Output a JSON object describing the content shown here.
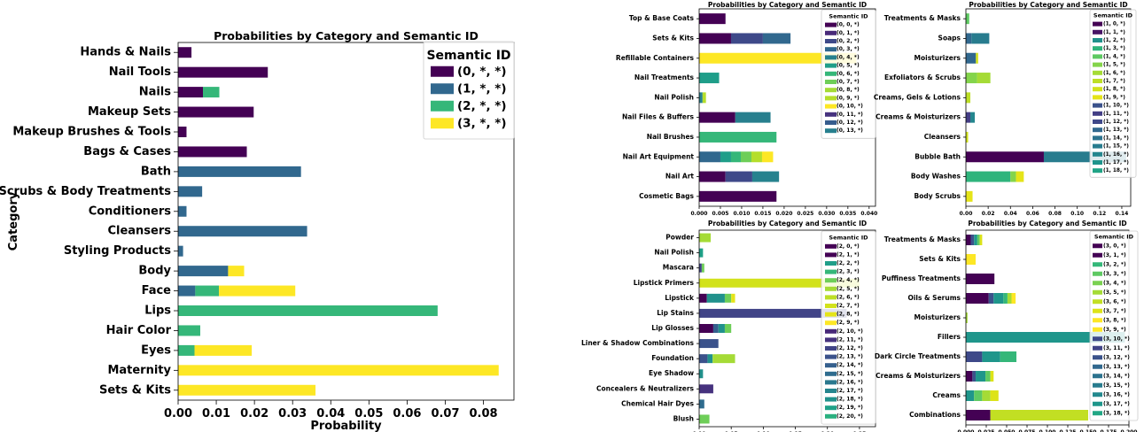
{
  "chart_data": [
    {
      "type": "bar",
      "orientation": "horizontal",
      "stacked": true,
      "title": "Probabilities by Category and Semantic ID",
      "xlabel": "Probability",
      "ylabel": "Category",
      "xlim": [
        0,
        0.088
      ],
      "xticks": [
        "0.00",
        "0.01",
        "0.02",
        "0.03",
        "0.04",
        "0.05",
        "0.06",
        "0.07",
        "0.08"
      ],
      "xtick_values": [
        0,
        0.01,
        0.02,
        0.03,
        0.04,
        0.05,
        0.06,
        0.07,
        0.08
      ],
      "legend_title": "Semantic ID",
      "legend_position": "top-right",
      "categories": [
        "Hands & Nails",
        "Nail Tools",
        "Nails",
        "Makeup Sets",
        "Makeup Brushes & Tools",
        "Bags & Cases",
        "Bath",
        "Scrubs & Body Treatments",
        "Conditioners",
        "Cleansers",
        "Styling Products",
        "Body",
        "Face",
        "Lips",
        "Hair Color",
        "Eyes",
        "Maternity",
        "Sets & Kits"
      ],
      "series": [
        {
          "name": "(0, *, *)",
          "color": "#440154",
          "values": [
            0.0035,
            0.0235,
            0.0065,
            0.0198,
            0.0022,
            0.018,
            0,
            0,
            0,
            0,
            0,
            0,
            0,
            0,
            0,
            0,
            0,
            0
          ]
        },
        {
          "name": "(1, *, *)",
          "color": "#31688e",
          "values": [
            0,
            0,
            0,
            0,
            0,
            0,
            0.0322,
            0.0063,
            0.0022,
            0.0338,
            0.0013,
            0.0131,
            0.0045,
            0,
            0,
            0,
            0,
            0
          ]
        },
        {
          "name": "(2, *, *)",
          "color": "#35b779",
          "values": [
            0,
            0,
            0.0043,
            0,
            0,
            0,
            0,
            0,
            0,
            0,
            0,
            0,
            0.0062,
            0.068,
            0.0058,
            0.0043,
            0,
            0
          ]
        },
        {
          "name": "(3, *, *)",
          "color": "#fde725",
          "values": [
            0,
            0,
            0,
            0,
            0,
            0,
            0,
            0,
            0,
            0,
            0,
            0.0042,
            0.02,
            0,
            0,
            0.015,
            0.084,
            0.036
          ]
        }
      ]
    },
    {
      "type": "bar",
      "orientation": "horizontal",
      "stacked": true,
      "title": "Probabilities by Category and Semantic ID",
      "xlim": [
        0,
        0.0415
      ],
      "xticks": [
        "0.000",
        "0.005",
        "0.010",
        "0.015",
        "0.020",
        "0.025",
        "0.030",
        "0.035",
        "0.040"
      ],
      "xtick_values": [
        0,
        0.005,
        0.01,
        0.015,
        0.02,
        0.025,
        0.03,
        0.035,
        0.04
      ],
      "legend_title": "Semantic ID",
      "legend_position": "top-right",
      "legend_entries": [
        "(0, 0, *)",
        "(0, 1, *)",
        "(0, 2, *)",
        "(0, 3, *)",
        "(0, 4, *)",
        "(0, 5, *)",
        "(0, 6, *)",
        "(0, 7, *)",
        "(0, 8, *)",
        "(0, 9, *)",
        "(0, 10, *)",
        "(0, 11, *)",
        "(0, 12, *)",
        "(0, 13, *)"
      ],
      "legend_colors": [
        "#440154",
        "#482979",
        "#3e4989",
        "#31688e",
        "#26828e",
        "#1f9e89",
        "#35b779",
        "#6ece58",
        "#a5db36",
        "#b5de2b",
        "#fde725",
        "#46327e",
        "#365c8d",
        "#277f8e"
      ],
      "categories": [
        "Top & Base Coats",
        "Sets & Kits",
        "Refillable Containers",
        "Nail Treatments",
        "Nail Polish",
        "Nail Files & Buffers",
        "Nail Brushes",
        "Nail Art Equipment",
        "Nail Art",
        "Cosmetic Bags"
      ],
      "segments": [
        [
          {
            "value": 0.0062,
            "color": "#440154"
          }
        ],
        [
          {
            "value": 0.0075,
            "color": "#440154"
          },
          {
            "value": 0.0075,
            "color": "#3e4989"
          },
          {
            "value": 0.0065,
            "color": "#31688e"
          }
        ],
        [
          {
            "value": 0.037,
            "color": "#fde725"
          }
        ],
        [
          {
            "value": 0.0047,
            "color": "#1f9e89"
          }
        ],
        [
          {
            "value": 0.0008,
            "color": "#26828e"
          },
          {
            "value": 0.0008,
            "color": "#b5de2b"
          }
        ],
        [
          {
            "value": 0.0085,
            "color": "#440154"
          },
          {
            "value": 0.0083,
            "color": "#277f8e"
          }
        ],
        [
          {
            "value": 0.0182,
            "color": "#35b779"
          }
        ],
        [
          {
            "value": 0.005,
            "color": "#31688e"
          },
          {
            "value": 0.0025,
            "color": "#1f9e89"
          },
          {
            "value": 0.0023,
            "color": "#35b779"
          },
          {
            "value": 0.0025,
            "color": "#6ece58"
          },
          {
            "value": 0.0025,
            "color": "#b5de2b"
          },
          {
            "value": 0.0026,
            "color": "#fde725"
          }
        ],
        [
          {
            "value": 0.0062,
            "color": "#440154"
          },
          {
            "value": 0.0063,
            "color": "#3e4989"
          },
          {
            "value": 0.0063,
            "color": "#26828e"
          }
        ],
        [
          {
            "value": 0.0182,
            "color": "#440154"
          }
        ]
      ]
    },
    {
      "type": "bar",
      "orientation": "horizontal",
      "stacked": true,
      "title": "Probabilities by Category and Semantic ID",
      "xlim": [
        0,
        0.148
      ],
      "xticks": [
        "0.00",
        "0.02",
        "0.04",
        "0.06",
        "0.08",
        "0.10",
        "0.12",
        "0.14"
      ],
      "xtick_values": [
        0,
        0.02,
        0.04,
        0.06,
        0.08,
        0.1,
        0.12,
        0.14
      ],
      "legend_title": "Semantic ID",
      "legend_position": "top-right",
      "legend_entries": [
        "(1, 0, *)",
        "(1, 1, *)",
        "(1, 2, *)",
        "(1, 3, *)",
        "(1, 4, *)",
        "(1, 5, *)",
        "(1, 6, *)",
        "(1, 7, *)",
        "(1, 8, *)",
        "(1, 9, *)",
        "(1, 10, *)",
        "(1, 11, *)",
        "(1, 12, *)",
        "(1, 13, *)",
        "(1, 14, *)",
        "(1, 15, *)",
        "(1, 16, *)",
        "(1, 17, *)",
        "(1, 18, *)"
      ],
      "legend_colors": [
        "#440154",
        "#471365",
        "#21918c",
        "#2fb47c",
        "#5ec962",
        "#84d44b",
        "#a5db36",
        "#bddf26",
        "#d2e21b",
        "#e5e419",
        "#3b528b",
        "#433e85",
        "#3f4889",
        "#31688e",
        "#2c728e",
        "#287c8e",
        "#24868e",
        "#1f948c",
        "#20a386"
      ],
      "categories": [
        "Treatments & Masks",
        "Soaps",
        "Moisturizers",
        "Exfoliators & Scrubs",
        "Creams, Gels & Lotions",
        "Creams & Moisturizers",
        "Cleansers",
        "Bubble Bath",
        "Body Washes",
        "Body Scrubs"
      ],
      "segments": [
        [
          {
            "value": 0.003,
            "color": "#5ec962"
          }
        ],
        [
          {
            "value": 0.005,
            "color": "#31688e"
          },
          {
            "value": 0.016,
            "color": "#287c8e"
          }
        ],
        [
          {
            "value": 0.009,
            "color": "#31688e"
          },
          {
            "value": 0.002,
            "color": "#d2e21b"
          }
        ],
        [
          {
            "value": 0.01,
            "color": "#84d44b"
          },
          {
            "value": 0.012,
            "color": "#a5db36"
          }
        ],
        [
          {
            "value": 0.004,
            "color": "#bddf26"
          }
        ],
        [
          {
            "value": 0.004,
            "color": "#433e85"
          },
          {
            "value": 0.004,
            "color": "#24868e"
          }
        ],
        [
          {
            "value": 0.002,
            "color": "#d2e21b"
          }
        ],
        [
          {
            "value": 0.07,
            "color": "#440154"
          },
          {
            "value": 0.074,
            "color": "#287c8e"
          }
        ],
        [
          {
            "value": 0.04,
            "color": "#2fb47c"
          },
          {
            "value": 0.005,
            "color": "#84d44b"
          },
          {
            "value": 0.007,
            "color": "#e5e419"
          }
        ],
        [
          {
            "value": 0.006,
            "color": "#e5e419"
          }
        ]
      ]
    },
    {
      "type": "bar",
      "orientation": "horizontal",
      "stacked": true,
      "title": "Probabilities by Category and Semantic ID",
      "xlim": [
        0,
        0.275
      ],
      "xticks": [
        "0.00",
        "0.05",
        "0.10",
        "0.15",
        "0.20",
        "0.25"
      ],
      "xtick_values": [
        0,
        0.05,
        0.1,
        0.15,
        0.2,
        0.25
      ],
      "legend_title": "Semantic ID",
      "legend_position": "top-right",
      "legend_entries": [
        "(2, 0, *)",
        "(2, 1, *)",
        "(2, 2, *)",
        "(2, 3, *)",
        "(2, 4, *)",
        "(2, 5, *)",
        "(2, 6, *)",
        "(2, 7, *)",
        "(2, 8, *)",
        "(2, 9, *)",
        "(2, 10, *)",
        "(2, 11, *)",
        "(2, 12, *)",
        "(2, 13, *)",
        "(2, 14, *)",
        "(2, 15, *)",
        "(2, 16, *)",
        "(2, 17, *)",
        "(2, 18, *)",
        "(2, 19, *)",
        "(2, 20, *)"
      ],
      "legend_colors": [
        "#440154",
        "#440154",
        "#1f9e89",
        "#35b779",
        "#6ece58",
        "#a5db36",
        "#bddf26",
        "#d2e21b",
        "#e5e419",
        "#fde725",
        "#482979",
        "#46327e",
        "#414487",
        "#3b528b",
        "#355f8d",
        "#2f6c8e",
        "#2a788e",
        "#25858e",
        "#21918c",
        "#1fa188",
        "#2ab07f"
      ],
      "categories": [
        "Powder",
        "Nail Polish",
        "Mascara",
        "Lipstick Primers",
        "Lipstick",
        "Lip Stains",
        "Lip Glosses",
        "Liner & Shadow Combinations",
        "Foundation",
        "Eye Shadow",
        "Concealers & Neutralizers",
        "Chemical Hair Dyes",
        "Blush"
      ],
      "segments": [
        [
          {
            "value": 0.018,
            "color": "#a5db36"
          }
        ],
        [
          {
            "value": 0.006,
            "color": "#1fa188"
          }
        ],
        [
          {
            "value": 0.004,
            "color": "#414487"
          },
          {
            "value": 0.004,
            "color": "#6ece58"
          }
        ],
        [
          {
            "value": 0.25,
            "color": "#d2e21b"
          }
        ],
        [
          {
            "value": 0.012,
            "color": "#440154"
          },
          {
            "value": 0.028,
            "color": "#21918c"
          },
          {
            "value": 0.01,
            "color": "#6ece58"
          },
          {
            "value": 0.006,
            "color": "#e5e419"
          }
        ],
        [
          {
            "value": 0.23,
            "color": "#414487"
          }
        ],
        [
          {
            "value": 0.022,
            "color": "#440154"
          },
          {
            "value": 0.008,
            "color": "#355f8d"
          },
          {
            "value": 0.01,
            "color": "#21918c"
          },
          {
            "value": 0.01,
            "color": "#6ece58"
          }
        ],
        [
          {
            "value": 0.03,
            "color": "#3b528b"
          }
        ],
        [
          {
            "value": 0.013,
            "color": "#3b528b"
          },
          {
            "value": 0.008,
            "color": "#21918c"
          },
          {
            "value": 0.035,
            "color": "#a5db36"
          }
        ],
        [
          {
            "value": 0.006,
            "color": "#21918c"
          }
        ],
        [
          {
            "value": 0.022,
            "color": "#46327e"
          }
        ],
        [
          {
            "value": 0.008,
            "color": "#2f6c8e"
          }
        ],
        [
          {
            "value": 0.016,
            "color": "#6ece58"
          }
        ]
      ]
    },
    {
      "type": "bar",
      "orientation": "horizontal",
      "stacked": true,
      "title": "Probabilities by Category and Semantic ID",
      "xlim": [
        0,
        0.2
      ],
      "xticks": [
        "0.000",
        "0.025",
        "0.050",
        "0.075",
        "0.100",
        "0.125",
        "0.150",
        "0.175",
        "0.200"
      ],
      "xtick_values": [
        0,
        0.025,
        0.05,
        0.075,
        0.1,
        0.125,
        0.15,
        0.175,
        0.2
      ],
      "legend_title": "Semantic ID",
      "legend_position": "top-right",
      "legend_entries": [
        "(3, 0, *)",
        "(3, 1, *)",
        "(3, 2, *)",
        "(3, 3, *)",
        "(3, 4, *)",
        "(3, 5, *)",
        "(3, 6, *)",
        "(3, 7, *)",
        "(3, 8, *)",
        "(3, 9, *)",
        "(3, 10, *)",
        "(3, 11, *)",
        "(3, 12, *)",
        "(3, 13, *)",
        "(3, 14, *)",
        "(3, 15, *)",
        "(3, 16, *)",
        "(3, 17, *)",
        "(3, 18, *)"
      ],
      "legend_colors": [
        "#440154",
        "#440154",
        "#35b779",
        "#5ec962",
        "#7ad151",
        "#a5db36",
        "#c2df23",
        "#dde318",
        "#fde725",
        "#fde725",
        "#3e4989",
        "#414487",
        "#3b528b",
        "#31688e",
        "#2c728e",
        "#287c8e",
        "#23898e",
        "#1f968b",
        "#22a785"
      ],
      "categories": [
        "Treatments & Masks",
        "Sets & Kits",
        "Puffiness Treatments",
        "Oils & Serums",
        "Moisturizers",
        "Fillers",
        "Dark Circle Treatments",
        "Creams & Moisturizers",
        "Creams",
        "Combinations"
      ],
      "segments": [
        [
          {
            "value": 0.006,
            "color": "#440154"
          },
          {
            "value": 0.004,
            "color": "#3b528b"
          },
          {
            "value": 0.004,
            "color": "#1f968b"
          },
          {
            "value": 0.003,
            "color": "#5ec962"
          },
          {
            "value": 0.003,
            "color": "#dde318"
          }
        ],
        [
          {
            "value": 0.012,
            "color": "#fde725"
          }
        ],
        [
          {
            "value": 0.035,
            "color": "#440154"
          }
        ],
        [
          {
            "value": 0.028,
            "color": "#440154"
          },
          {
            "value": 0.006,
            "color": "#3b528b"
          },
          {
            "value": 0.012,
            "color": "#1f968b"
          },
          {
            "value": 0.005,
            "color": "#35b779"
          },
          {
            "value": 0.005,
            "color": "#a5db36"
          },
          {
            "value": 0.005,
            "color": "#fde725"
          }
        ],
        [
          {
            "value": 0.002,
            "color": "#a5db36"
          }
        ],
        [
          {
            "value": 0.195,
            "color": "#1f968b"
          }
        ],
        [
          {
            "value": 0.02,
            "color": "#3e4989"
          },
          {
            "value": 0.022,
            "color": "#1f968b"
          },
          {
            "value": 0.02,
            "color": "#35b779"
          }
        ],
        [
          {
            "value": 0.008,
            "color": "#440154"
          },
          {
            "value": 0.004,
            "color": "#3b528b"
          },
          {
            "value": 0.012,
            "color": "#1f968b"
          },
          {
            "value": 0.006,
            "color": "#5ec962"
          },
          {
            "value": 0.004,
            "color": "#dde318"
          }
        ],
        [
          {
            "value": 0.01,
            "color": "#1f968b"
          },
          {
            "value": 0.01,
            "color": "#5ec962"
          },
          {
            "value": 0.01,
            "color": "#a5db36"
          },
          {
            "value": 0.01,
            "color": "#dde318"
          }
        ],
        [
          {
            "value": 0.03,
            "color": "#440154"
          },
          {
            "value": 0.12,
            "color": "#c2df23"
          }
        ]
      ]
    }
  ]
}
